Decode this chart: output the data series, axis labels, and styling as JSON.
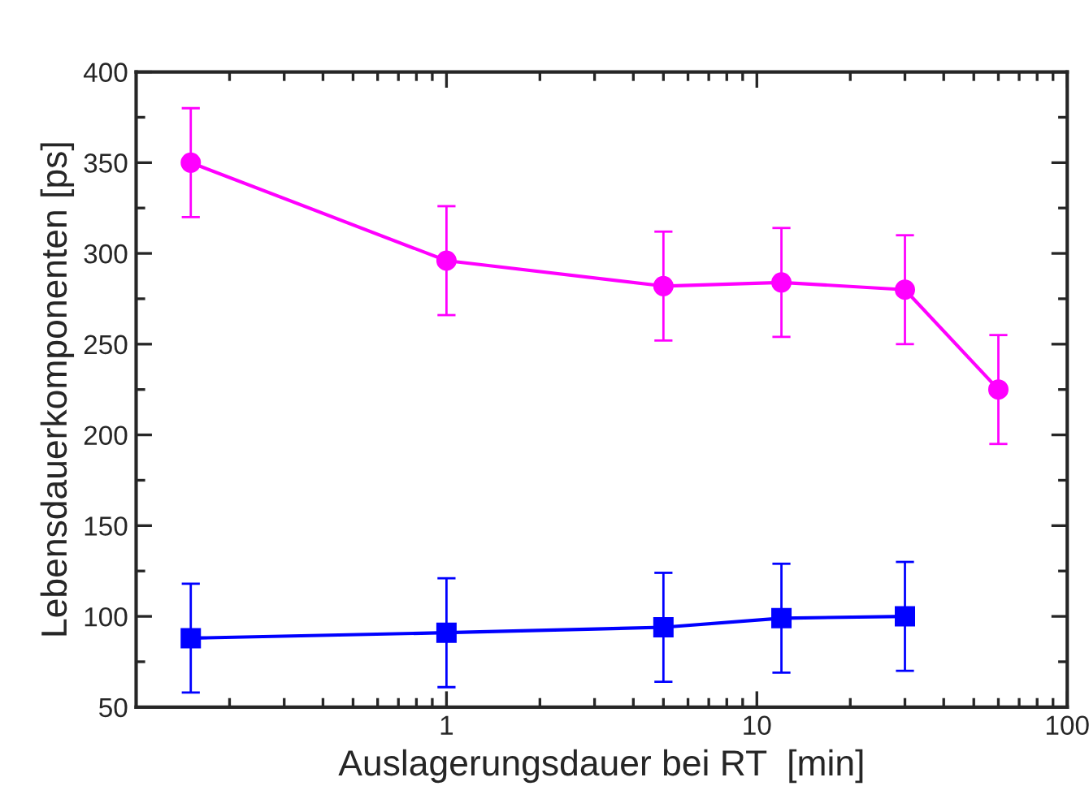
{
  "chart_data": {
    "type": "line",
    "xlabel": "Auslagerungsdauer bei RT  [min]",
    "ylabel": "Lebensdauerkomponenten [ps]",
    "log": "x",
    "xlim": [
      0.1,
      100
    ],
    "xticks": [
      1,
      10,
      100
    ],
    "ylim": [
      50,
      400
    ],
    "yticks": [
      50,
      100,
      150,
      200,
      250,
      300,
      350,
      400
    ],
    "grid": false,
    "legend": false,
    "series": [
      {
        "color": "#ff00ff",
        "marker": "circle",
        "x": [
          0.15,
          1,
          5,
          12,
          30,
          60
        ],
        "values": [
          350,
          296,
          282,
          284,
          280,
          225
        ],
        "errors": [
          30,
          30,
          30,
          30,
          30,
          30
        ]
      },
      {
        "color": "#0000ff",
        "marker": "square",
        "x": [
          0.15,
          1,
          5,
          12,
          30
        ],
        "values": [
          88,
          91,
          94,
          99,
          100
        ],
        "errors": [
          30,
          30,
          30,
          30,
          30
        ]
      }
    ]
  }
}
